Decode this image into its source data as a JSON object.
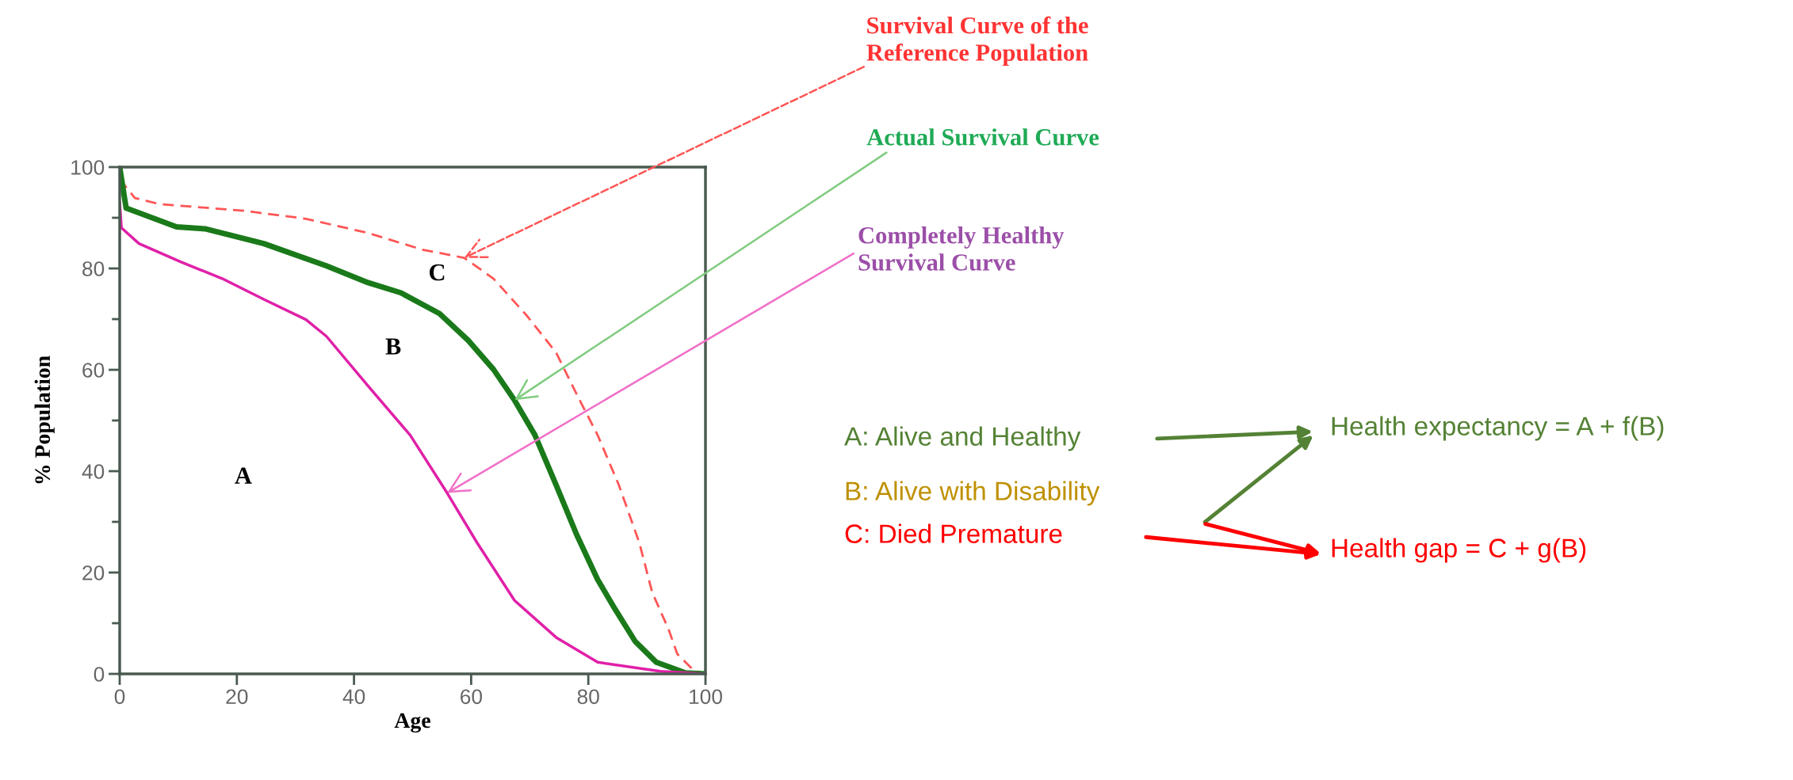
{
  "chart_data": {
    "type": "line",
    "xlabel": "Age",
    "ylabel": "% Population",
    "series": [
      {
        "color": "#ff5555",
        "line_style": "dashed",
        "x": [
          0,
          2.6,
          6.8,
          21.1,
          31.8,
          42.4,
          51.7,
          58.8,
          63.8,
          69.5,
          74.5,
          78,
          81.6,
          85.2,
          88.7,
          90.9,
          93.7,
          95.2,
          98,
          100
        ],
        "values": [
          97.6,
          93.9,
          92.7,
          91.4,
          89.8,
          87,
          83.7,
          82.1,
          78,
          70.7,
          63.4,
          55.2,
          47.1,
          37.3,
          25.9,
          16.1,
          8.8,
          3.9,
          0.7,
          0
        ]
      },
      {
        "color": "#1a7a1a",
        "line_style": "solid",
        "x": [
          0,
          1.1,
          9.7,
          14.7,
          24.6,
          35.3,
          42.4,
          48,
          54.6,
          59.5,
          63.8,
          67.4,
          70.9,
          74.5,
          78,
          81.6,
          84.5,
          88,
          91.6,
          96.6,
          100
        ],
        "values": [
          100,
          91.9,
          88.2,
          87.8,
          84.9,
          80.5,
          77.2,
          75.2,
          71.1,
          65.8,
          60.1,
          54,
          47.1,
          37.3,
          27.5,
          18.6,
          12.9,
          6.4,
          2.3,
          0.2,
          0
        ]
      },
      {
        "color": "#e020a8",
        "line_style": "solid",
        "x": [
          0,
          0.3,
          3.3,
          10.4,
          17.5,
          24.6,
          31.8,
          35.3,
          42.4,
          49.6,
          55.9,
          61,
          67.4,
          74.5,
          81.6,
          92.3,
          100
        ],
        "values": [
          93,
          88,
          84.9,
          81.3,
          78,
          73.9,
          69.9,
          66.6,
          56.8,
          47.1,
          35.7,
          25.9,
          14.5,
          7.2,
          2.3,
          0.5,
          0
        ]
      }
    ],
    "xlim": [
      0,
      100
    ],
    "ylim": [
      0,
      100
    ],
    "xticks": [
      0,
      20,
      40,
      60,
      80,
      100
    ],
    "yticks": [
      0,
      {
        "value": 10,
        "label": null
      },
      20,
      {
        "value": 30,
        "label": null
      },
      40,
      {
        "value": 50,
        "label": null
      },
      60,
      {
        "value": 70,
        "label": null
      },
      80,
      {
        "value": 90,
        "label": null
      },
      100
    ],
    "marker": "none",
    "grid": false,
    "legend": false,
    "annotations": [
      {
        "text": "Survival Curve of the\nReference Population",
        "x": 58.8,
        "y": 82.1
      },
      {
        "text": "Actual Survival Curve",
        "x": 67.4,
        "y": 54
      },
      {
        "text": "Completely Healthy\nSurvival Curve",
        "x": 55.9,
        "y": 35.7
      },
      "A",
      "B",
      "C",
      "A: Alive and Healthy",
      "B: Alive with Disability",
      "C: Died Premature",
      "Health expectancy = A + f(B)",
      "Health gap = C + g(B)"
    ]
  }
}
